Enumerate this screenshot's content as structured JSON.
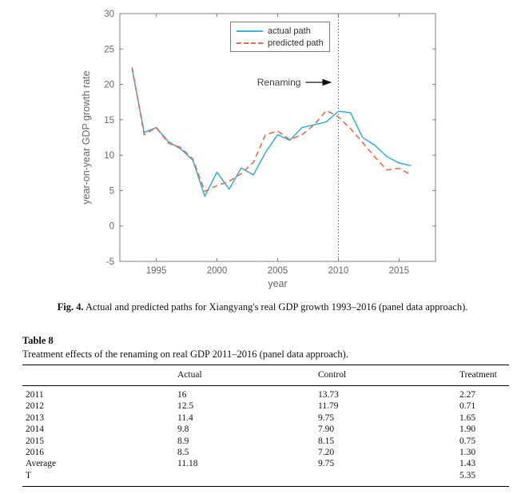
{
  "chart_data": {
    "type": "line",
    "title": "",
    "xlabel": "year",
    "ylabel": "year-on-year GDP growth rate",
    "xlim": [
      1992,
      2018
    ],
    "ylim": [
      -5,
      30
    ],
    "x_ticks": [
      1995,
      2000,
      2005,
      2010,
      2015
    ],
    "y_ticks": [
      -5,
      0,
      5,
      10,
      15,
      20,
      25,
      30
    ],
    "grid": false,
    "legend_position": "top-center",
    "axis_color": "#7d7d7d",
    "tick_label_color": "#666666",
    "x": [
      1993,
      1994,
      1995,
      1996,
      1997,
      1998,
      1999,
      2000,
      2001,
      2002,
      2003,
      2004,
      2005,
      2006,
      2007,
      2008,
      2009,
      2010,
      2011,
      2012,
      2013,
      2014,
      2015,
      2016
    ],
    "series": [
      {
        "name": "actual path",
        "line_style": "solid",
        "color": "#41b1d0",
        "values": [
          22.3,
          13.2,
          13.9,
          11.9,
          10.9,
          9.3,
          4.2,
          7.6,
          5.2,
          8.2,
          7.2,
          10.4,
          12.9,
          12.1,
          13.9,
          14.3,
          14.7,
          16.2,
          16.0,
          12.5,
          11.4,
          9.8,
          8.9,
          8.5
        ]
      },
      {
        "name": "predicted path",
        "line_style": "dashed",
        "color": "#ec6a52",
        "values": [
          22.4,
          12.9,
          13.9,
          11.7,
          11.1,
          9.5,
          4.9,
          5.7,
          6.3,
          7.4,
          9.0,
          12.9,
          13.4,
          12.2,
          12.9,
          14.3,
          16.3,
          15.4,
          13.73,
          11.79,
          9.75,
          7.9,
          8.15,
          7.2
        ]
      }
    ],
    "event_line": {
      "year": 2010,
      "style": "dotted",
      "color": "#3a3a3a"
    },
    "annotation": {
      "text": "Renaming",
      "points_to_year": 2010
    }
  },
  "figure_caption": {
    "label": "Fig. 4.",
    "text": "Actual and predicted paths for Xiangyang's real GDP growth 1993–2016 (panel data approach)."
  },
  "table": {
    "label": "Table 8",
    "caption": "Treatment effects of the renaming on real GDP 2011–2016 (panel data approach).",
    "columns": [
      "",
      "Actual",
      "Control",
      "Treatment"
    ],
    "rows": [
      [
        "2011",
        "16",
        "13.73",
        "2.27"
      ],
      [
        "2012",
        "12.5",
        "11.79",
        "0.71"
      ],
      [
        "2013",
        "11.4",
        "9.75",
        "1.65"
      ],
      [
        "2014",
        "9.8",
        "7.90",
        "1.90"
      ],
      [
        "2015",
        "8.9",
        "8.15",
        "0.75"
      ],
      [
        "2016",
        "8.5",
        "7.20",
        "1.30"
      ],
      [
        "Average",
        "11.18",
        "9.75",
        "1.43"
      ],
      [
        "T",
        "",
        "",
        "5.35"
      ]
    ]
  }
}
